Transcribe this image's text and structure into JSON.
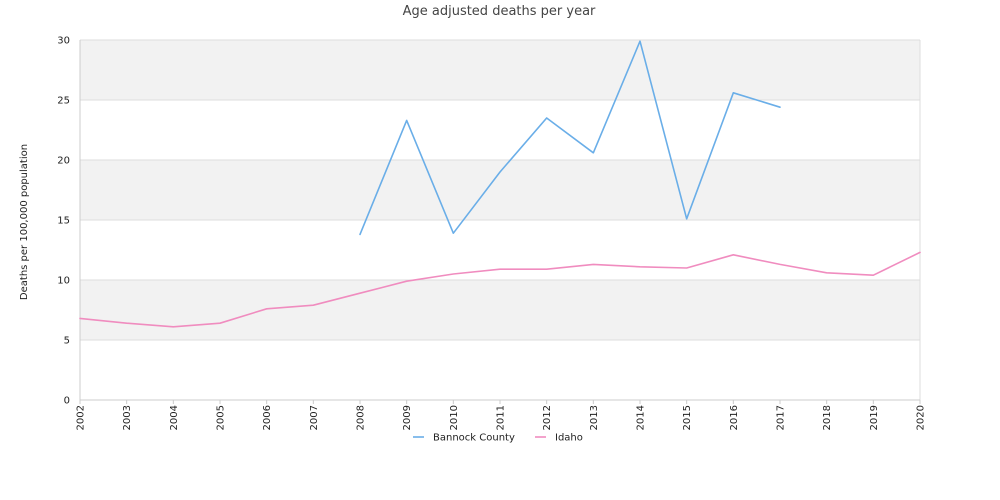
{
  "chart_data": {
    "type": "line",
    "title": "Age adjusted deaths per year",
    "xlabel": "",
    "ylabel": "Deaths per 100,000 population",
    "x": [
      "2002",
      "2003",
      "2004",
      "2005",
      "2006",
      "2007",
      "2008",
      "2009",
      "2010",
      "2011",
      "2012",
      "2013",
      "2014",
      "2015",
      "2016",
      "2017",
      "2018",
      "2019",
      "2020"
    ],
    "ylim": [
      0,
      30
    ],
    "yticks": [
      0,
      5,
      10,
      15,
      20,
      25,
      30
    ],
    "grid": "horizontal alternating bands",
    "legend_position": "bottom-center",
    "series": [
      {
        "name": "Bannock County",
        "color": "#6aaee8",
        "values": [
          null,
          null,
          null,
          null,
          null,
          null,
          13.8,
          23.3,
          13.9,
          19.0,
          23.5,
          20.6,
          29.9,
          15.1,
          25.6,
          24.4,
          null,
          null,
          null
        ]
      },
      {
        "name": "Idaho",
        "color": "#f08cbf",
        "values": [
          6.8,
          6.4,
          6.1,
          6.4,
          7.6,
          7.9,
          8.9,
          9.9,
          10.5,
          10.9,
          10.9,
          11.3,
          11.1,
          11.0,
          12.1,
          11.3,
          10.6,
          10.4,
          12.3
        ]
      }
    ]
  }
}
